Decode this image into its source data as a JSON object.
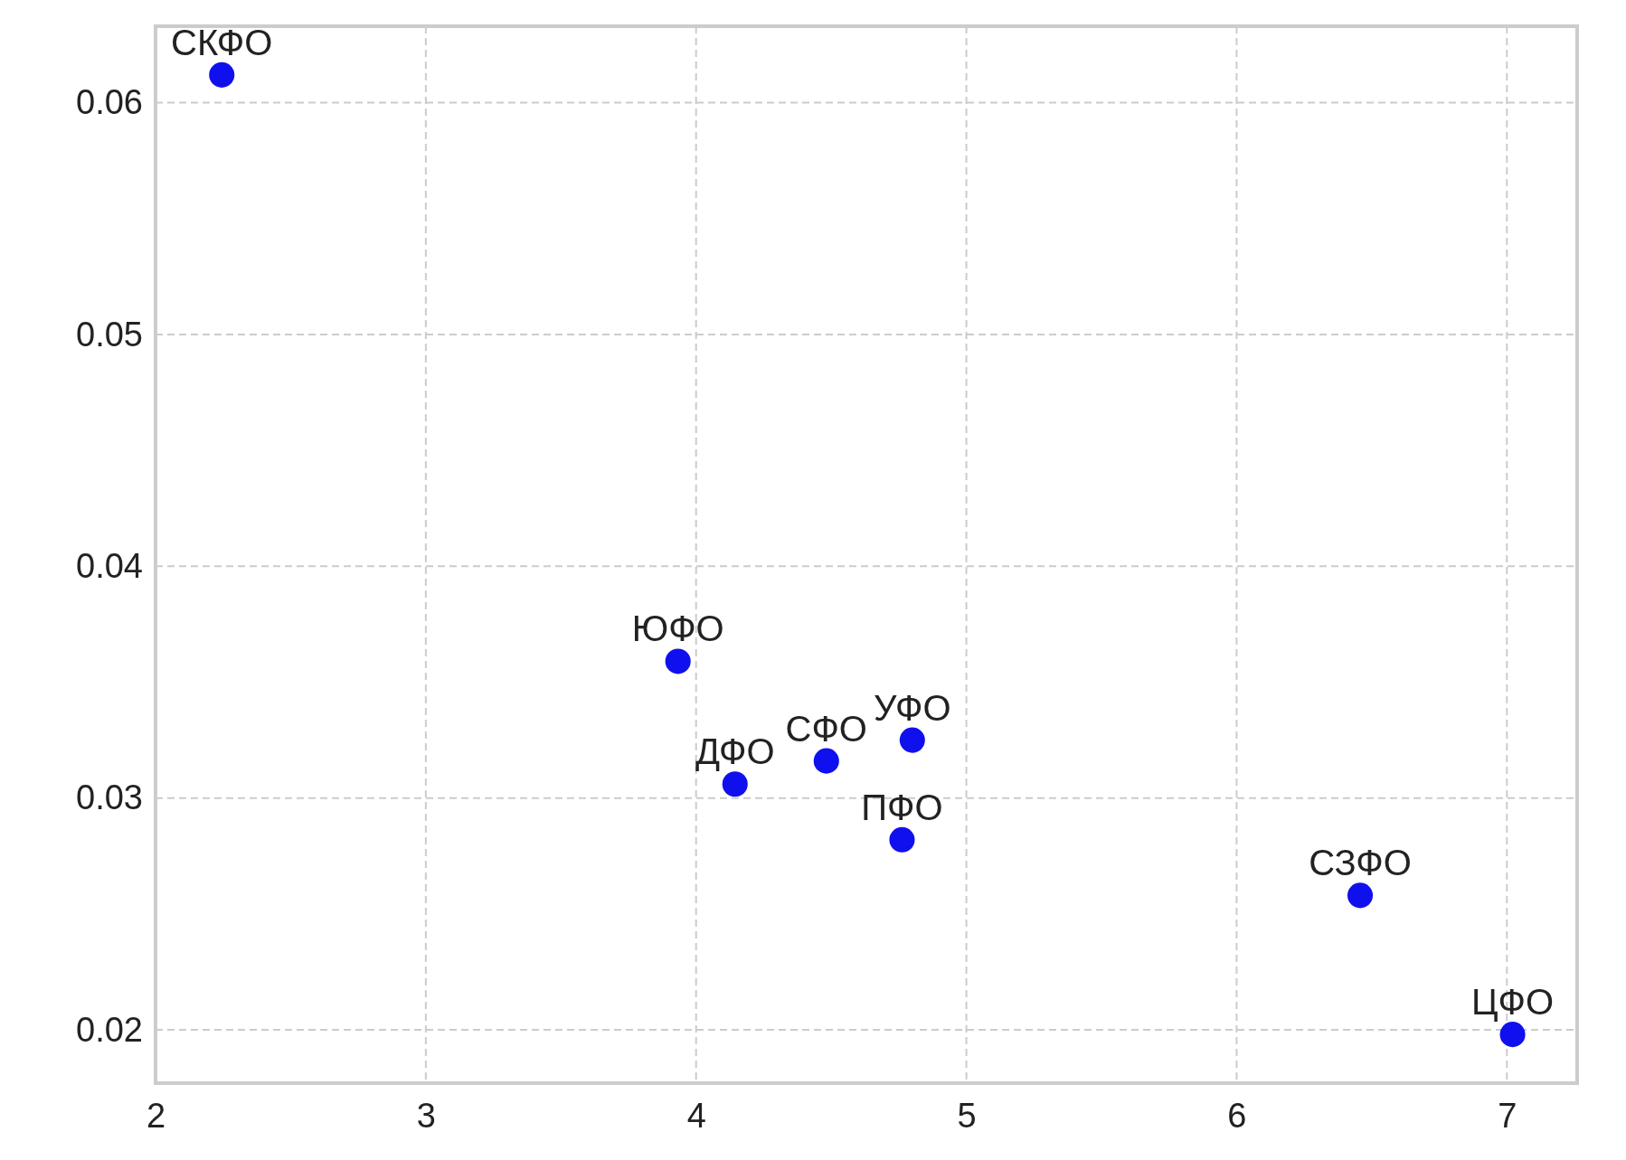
{
  "chart_data": {
    "type": "scatter",
    "x": [
      2.245,
      3.933,
      4.144,
      4.482,
      4.8,
      4.762,
      6.457,
      7.021
    ],
    "series": [
      {
        "color": "#1010ee",
        "values": [
          0.0612,
          0.0359,
          0.0306,
          0.0316,
          0.0325,
          0.0282,
          0.0258,
          0.0198
        ]
      }
    ],
    "xlim": [
      2,
      7.26
    ],
    "ylim": [
      0.0177,
      0.0633
    ],
    "xticks": [
      2,
      3,
      4,
      5,
      6,
      7
    ],
    "yticks": [
      {
        "value": 0.02,
        "label": "0.02"
      },
      {
        "value": 0.03,
        "label": "0.03"
      },
      {
        "value": 0.04,
        "label": "0.04"
      },
      {
        "value": 0.05,
        "label": "0.05"
      },
      {
        "value": 0.06,
        "label": "0.06"
      }
    ],
    "grid": true,
    "marker": "circle",
    "annotations": [
      {
        "text": "СКФО",
        "x": 2.245,
        "y": 0.0612
      },
      {
        "text": "ЮФО",
        "x": 3.933,
        "y": 0.0359
      },
      {
        "text": "ДФО",
        "x": 4.144,
        "y": 0.0306
      },
      {
        "text": "СФО",
        "x": 4.482,
        "y": 0.0316
      },
      {
        "text": "УФО",
        "x": 4.8,
        "y": 0.0325
      },
      {
        "text": "ПФО",
        "x": 4.762,
        "y": 0.0282
      },
      {
        "text": "СЗФО",
        "x": 6.457,
        "y": 0.0258
      },
      {
        "text": "ЦФО",
        "x": 7.021,
        "y": 0.0198
      }
    ]
  }
}
